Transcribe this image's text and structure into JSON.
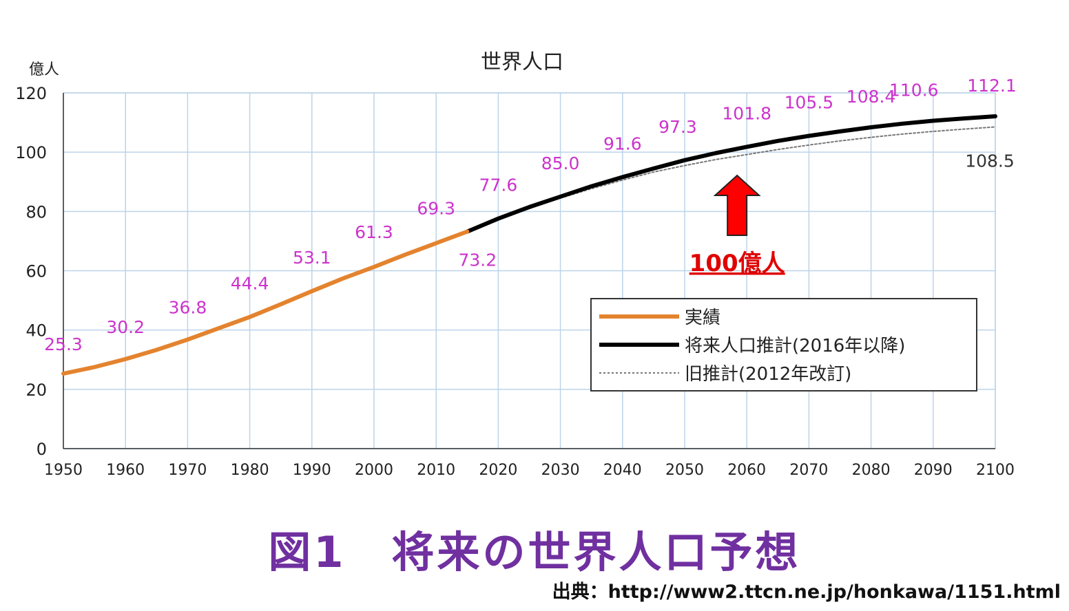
{
  "chart_data": {
    "type": "line",
    "title": "世界人口",
    "ylabel": "億人",
    "xlabel": "",
    "xlim": [
      1950,
      2100
    ],
    "ylim": [
      0,
      120
    ],
    "grid": true,
    "x_ticks": [
      "1950",
      "1960",
      "1970",
      "1980",
      "1990",
      "2000",
      "2010",
      "2020",
      "2030",
      "2040",
      "2050",
      "2060",
      "2070",
      "2080",
      "2090",
      "2100"
    ],
    "y_ticks": [
      "0",
      "20",
      "40",
      "60",
      "80",
      "100",
      "120"
    ],
    "series": [
      {
        "name": "実績",
        "color": "#e4832e",
        "style": "solid",
        "x": [
          1950,
          1955,
          1960,
          1965,
          1970,
          1975,
          1980,
          1985,
          1990,
          1995,
          2000,
          2005,
          2010,
          2015
        ],
        "y": [
          25.3,
          27.5,
          30.2,
          33.3,
          36.8,
          40.6,
          44.4,
          48.7,
          53.1,
          57.4,
          61.3,
          65.4,
          69.3,
          73.2
        ]
      },
      {
        "name": "将来人口推計(2016年以降)",
        "color": "#000000",
        "style": "solid",
        "x": [
          2015,
          2020,
          2025,
          2030,
          2035,
          2040,
          2045,
          2050,
          2055,
          2060,
          2065,
          2070,
          2075,
          2080,
          2085,
          2090,
          2095,
          2100
        ],
        "y": [
          73.2,
          77.6,
          81.5,
          85.0,
          88.5,
          91.6,
          94.5,
          97.3,
          99.7,
          101.8,
          103.8,
          105.5,
          107.0,
          108.4,
          109.6,
          110.6,
          111.4,
          112.1
        ]
      },
      {
        "name": "旧推計(2012年改訂)",
        "color": "#777777",
        "style": "dotted",
        "x": [
          2015,
          2020,
          2025,
          2030,
          2035,
          2040,
          2045,
          2050,
          2055,
          2060,
          2065,
          2070,
          2075,
          2080,
          2085,
          2090,
          2095,
          2100
        ],
        "y": [
          73.2,
          77.2,
          81.0,
          84.5,
          87.7,
          90.6,
          93.3,
          95.5,
          97.5,
          99.2,
          100.9,
          102.4,
          103.8,
          105.0,
          106.1,
          107.0,
          107.8,
          108.5
        ]
      }
    ],
    "data_labels": [
      {
        "x": 1950,
        "y": 25.3,
        "text": "25.3",
        "color": "#cc33cc"
      },
      {
        "x": 1960,
        "y": 30.2,
        "text": "30.2",
        "color": "#cc33cc"
      },
      {
        "x": 1970,
        "y": 36.8,
        "text": "36.8",
        "color": "#cc33cc"
      },
      {
        "x": 1980,
        "y": 44.4,
        "text": "44.4",
        "color": "#cc33cc"
      },
      {
        "x": 1990,
        "y": 53.1,
        "text": "53.1",
        "color": "#cc33cc"
      },
      {
        "x": 2000,
        "y": 61.3,
        "text": "61.3",
        "color": "#cc33cc"
      },
      {
        "x": 2010,
        "y": 69.3,
        "text": "69.3",
        "color": "#cc33cc"
      },
      {
        "x": 2015,
        "y": 73.2,
        "text": "73.2",
        "color": "#cc33cc"
      },
      {
        "x": 2020,
        "y": 77.6,
        "text": "77.6",
        "color": "#cc33cc"
      },
      {
        "x": 2030,
        "y": 85.0,
        "text": "85.0",
        "color": "#cc33cc"
      },
      {
        "x": 2040,
        "y": 91.6,
        "text": "91.6",
        "color": "#cc33cc"
      },
      {
        "x": 2050,
        "y": 97.3,
        "text": "97.3",
        "color": "#cc33cc"
      },
      {
        "x": 2060,
        "y": 101.8,
        "text": "101.8",
        "color": "#cc33cc"
      },
      {
        "x": 2070,
        "y": 105.5,
        "text": "105.5",
        "color": "#cc33cc"
      },
      {
        "x": 2080,
        "y": 108.4,
        "text": "108.4",
        "color": "#cc33cc"
      },
      {
        "x": 2090,
        "y": 110.6,
        "text": "110.6",
        "color": "#cc33cc"
      },
      {
        "x": 2100,
        "y": 112.1,
        "text": "112.1",
        "color": "#cc33cc"
      },
      {
        "x": 2100,
        "y": 108.5,
        "text": "108.5",
        "color": "#333333"
      }
    ],
    "annotation": {
      "x": 2058,
      "y": 100,
      "text": "100億人",
      "color": "#e00000",
      "icon": "up-arrow-icon"
    },
    "legend_position": "lower-right"
  },
  "caption": "図1　将来の世界人口予想",
  "source": "出典：http://www2.ttcn.ne.jp/honkawa/1151.html"
}
